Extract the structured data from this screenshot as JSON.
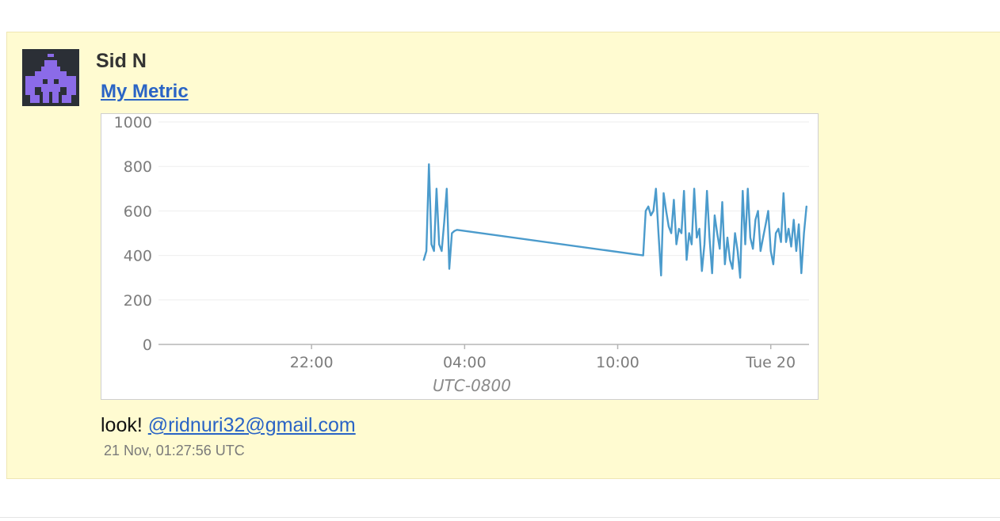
{
  "post": {
    "author": "Sid N",
    "metric_title": "My Metric",
    "comment_text": "look!",
    "mention": "@ridnuri32@gmail.com",
    "timestamp": "21 Nov, 01:27:56 UTC"
  },
  "colors": {
    "card_background": "#fffbd1",
    "line": "#4b9bcc",
    "link": "#2a64c5",
    "avatar_background": "#2b2f36",
    "avatar_figure": "#8b6be8"
  },
  "chart_data": {
    "type": "line",
    "title": "",
    "xlabel": "UTC-0800",
    "ylabel": "",
    "x_domain_hours": [
      16,
      41.5
    ],
    "ylim": [
      0,
      1000
    ],
    "y_ticks": [
      0,
      200,
      400,
      600,
      800,
      1000
    ],
    "x_ticks": [
      {
        "label": "22:00",
        "hour": 22
      },
      {
        "label": "04:00",
        "hour": 28
      },
      {
        "label": "10:00",
        "hour": 34
      },
      {
        "label": "Tue 20",
        "hour": 40
      }
    ],
    "grid": true,
    "series": [
      {
        "name": "",
        "color": "#4b9bcc",
        "x_hours": [
          26.4,
          26.5,
          26.6,
          26.7,
          26.8,
          26.9,
          27.0,
          27.1,
          27.2,
          27.3,
          27.4,
          27.5,
          27.6,
          27.7,
          35.0,
          35.1,
          35.2,
          35.3,
          35.4,
          35.5,
          35.6,
          35.7,
          35.8,
          35.9,
          36.0,
          36.1,
          36.2,
          36.3,
          36.4,
          36.5,
          36.6,
          36.7,
          36.8,
          36.9,
          37.0,
          37.1,
          37.2,
          37.3,
          37.4,
          37.5,
          37.6,
          37.7,
          37.8,
          37.9,
          38.0,
          38.1,
          38.2,
          38.3,
          38.4,
          38.5,
          38.6,
          38.7,
          38.8,
          38.9,
          39.0,
          39.1,
          39.2,
          39.3,
          39.4,
          39.5,
          39.6,
          39.7,
          39.8,
          39.9,
          40.0,
          40.1,
          40.2,
          40.3,
          40.4,
          40.5,
          40.6,
          40.7,
          40.8,
          40.9,
          41.0,
          41.1,
          41.2,
          41.3,
          41.4
        ],
        "y": [
          380,
          420,
          810,
          450,
          420,
          700,
          450,
          420,
          550,
          700,
          340,
          500,
          510,
          515,
          400,
          600,
          620,
          580,
          600,
          700,
          500,
          310,
          680,
          600,
          530,
          500,
          650,
          450,
          520,
          500,
          690,
          380,
          500,
          450,
          700,
          480,
          520,
          330,
          450,
          690,
          480,
          320,
          580,
          500,
          430,
          640,
          360,
          480,
          380,
          340,
          500,
          420,
          300,
          690,
          450,
          700,
          480,
          430,
          560,
          600,
          420,
          480,
          540,
          600,
          420,
          360,
          500,
          520,
          460,
          680,
          460,
          520,
          440,
          560,
          420,
          540,
          320,
          500,
          620
        ]
      }
    ]
  }
}
